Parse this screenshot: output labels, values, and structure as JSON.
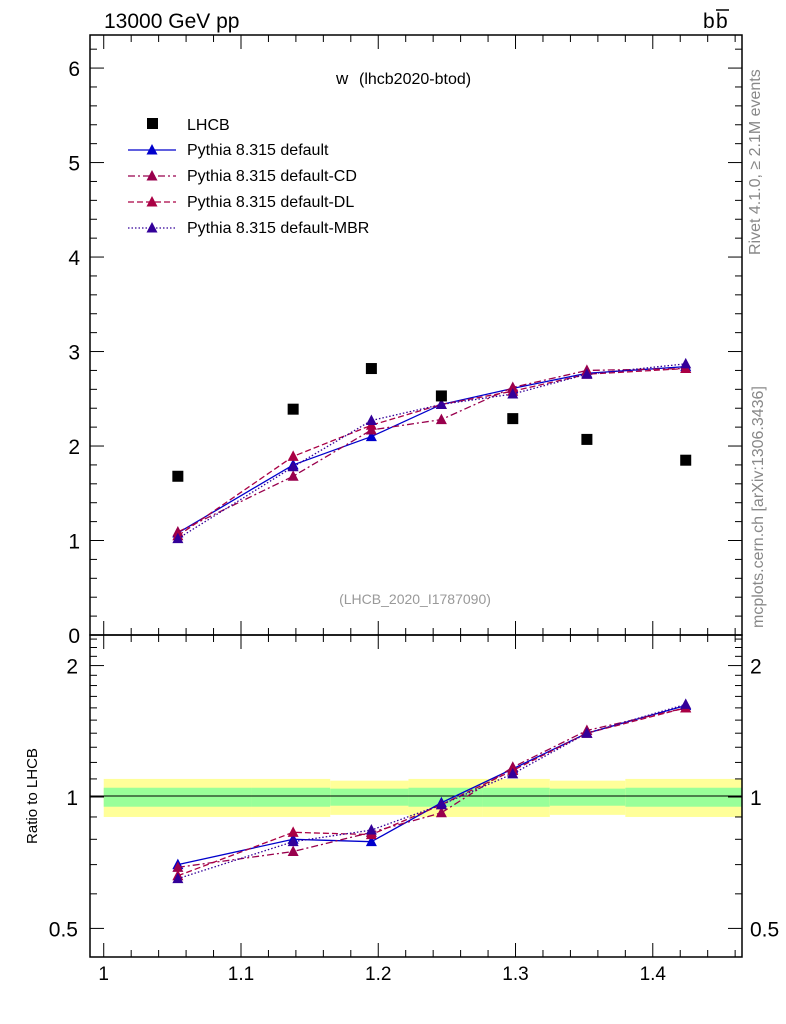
{
  "header": {
    "energy_label": "13000 GeV pp",
    "process_b": "b",
    "process_bbar": "b"
  },
  "side_labels": {
    "rivet": "Rivet 4.1.0, ≥ 2.1M events",
    "mcplots": "mcplots.cern.ch [arXiv:1306.3436]"
  },
  "chart_data": {
    "type": "line",
    "title_main": "w",
    "title_sub": "(lhcb2020-btod)",
    "analysis_label": "(LHCB_2020_I1787090)",
    "xlabel": "",
    "ylabel_main": "",
    "ylabel_ratio": "Ratio to LHCB",
    "xlim": [
      0.99,
      1.465
    ],
    "ylim_main": [
      0,
      6.35
    ],
    "ylim_ratio": [
      0.43,
      2.35
    ],
    "x_ticks": [
      1.0,
      1.1,
      1.2,
      1.3,
      1.4
    ],
    "x_tick_labels": [
      "1",
      "1.1",
      "1.2",
      "1.3",
      "1.4"
    ],
    "y_ticks_main": [
      0,
      1,
      2,
      3,
      4,
      5,
      6
    ],
    "y_tick_labels_main": [
      "0",
      "1",
      "2",
      "3",
      "4",
      "5",
      "6"
    ],
    "y_ticks_ratio": [
      0.5,
      1,
      2
    ],
    "y_tick_labels_ratio": [
      "0.5",
      "1",
      "2"
    ],
    "x": [
      1.054,
      1.138,
      1.195,
      1.246,
      1.298,
      1.352,
      1.424
    ],
    "data": {
      "name": "LHCB",
      "values": [
        1.68,
        2.39,
        2.82,
        2.53,
        2.29,
        2.07,
        1.85
      ],
      "band_edges": [
        1.0,
        1.108,
        1.165,
        1.222,
        1.276,
        1.325,
        1.38,
        1.465
      ],
      "band_inner": [
        0.05,
        0.05,
        0.045,
        0.05,
        0.05,
        0.045,
        0.05
      ],
      "band_outer": [
        0.1,
        0.1,
        0.09,
        0.1,
        0.1,
        0.09,
        0.1
      ]
    },
    "series": [
      {
        "name": "Pythia 8.315 default",
        "color": "#0000cc",
        "dash": "",
        "values": [
          1.08,
          1.8,
          2.1,
          2.44,
          2.61,
          2.77,
          2.84
        ],
        "ratio": [
          0.7,
          0.8,
          0.79,
          0.97,
          1.16,
          1.4,
          1.62
        ]
      },
      {
        "name": "Pythia 8.315 default-CD",
        "color": "#99004d",
        "dash": "7,3,2,3",
        "values": [
          1.09,
          1.68,
          2.17,
          2.28,
          2.62,
          2.8,
          2.82
        ],
        "ratio": [
          0.69,
          0.75,
          0.83,
          0.92,
          1.17,
          1.42,
          1.6
        ]
      },
      {
        "name": "Pythia 8.315 default-DL",
        "color": "#aa0044",
        "dash": "6,3",
        "values": [
          1.05,
          1.89,
          2.22,
          2.44,
          2.58,
          2.76,
          2.82
        ],
        "ratio": [
          0.66,
          0.83,
          0.82,
          0.96,
          1.15,
          1.4,
          1.6
        ]
      },
      {
        "name": "Pythia 8.315 default-MBR",
        "color": "#330099",
        "dash": "1.5,2",
        "values": [
          1.02,
          1.78,
          2.27,
          2.44,
          2.55,
          2.76,
          2.87
        ],
        "ratio": [
          0.65,
          0.79,
          0.84,
          0.96,
          1.13,
          1.4,
          1.63
        ]
      }
    ],
    "legend_position": "top-left"
  }
}
